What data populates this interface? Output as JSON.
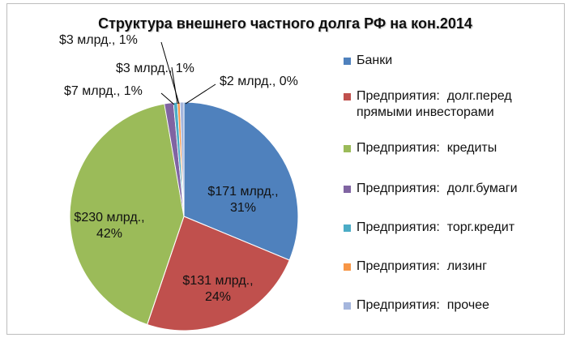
{
  "chart_data": {
    "type": "pie",
    "title": "Структура внешнего частного долга РФ на кон.2014",
    "legend_position": "right",
    "slices": [
      {
        "name": "Банки",
        "value": 171,
        "percent": 31,
        "label": "$171 млрд., 31%",
        "color": "#4f81bd"
      },
      {
        "name": "Предприятия:  долг.перед прямыми инвесторами",
        "value": 131,
        "percent": 24,
        "label": "$131 млрд., 24%",
        "color": "#c0504d"
      },
      {
        "name": "Предприятия:  кредиты",
        "value": 230,
        "percent": 42,
        "label": "$230 млрд., 42%",
        "color": "#9bbb59"
      },
      {
        "name": "Предприятия:  долг.бумаги",
        "value": 7,
        "percent": 1,
        "label": "$7 млрд., 1%",
        "color": "#8064a2"
      },
      {
        "name": "Предприятия:  торг.кредит",
        "value": 3,
        "percent": 1,
        "label": "$3 млрд., 1%",
        "color": "#4bacc6"
      },
      {
        "name": "Предприятия:  лизинг",
        "value": 2,
        "percent": 0,
        "label": "$2 млрд., 0%",
        "color": "#f79646"
      },
      {
        "name": "Предприятия:  прочее",
        "value": 3,
        "percent": 1,
        "label": "$3 млрд., 1%",
        "color": "#a5b6dd"
      }
    ]
  }
}
